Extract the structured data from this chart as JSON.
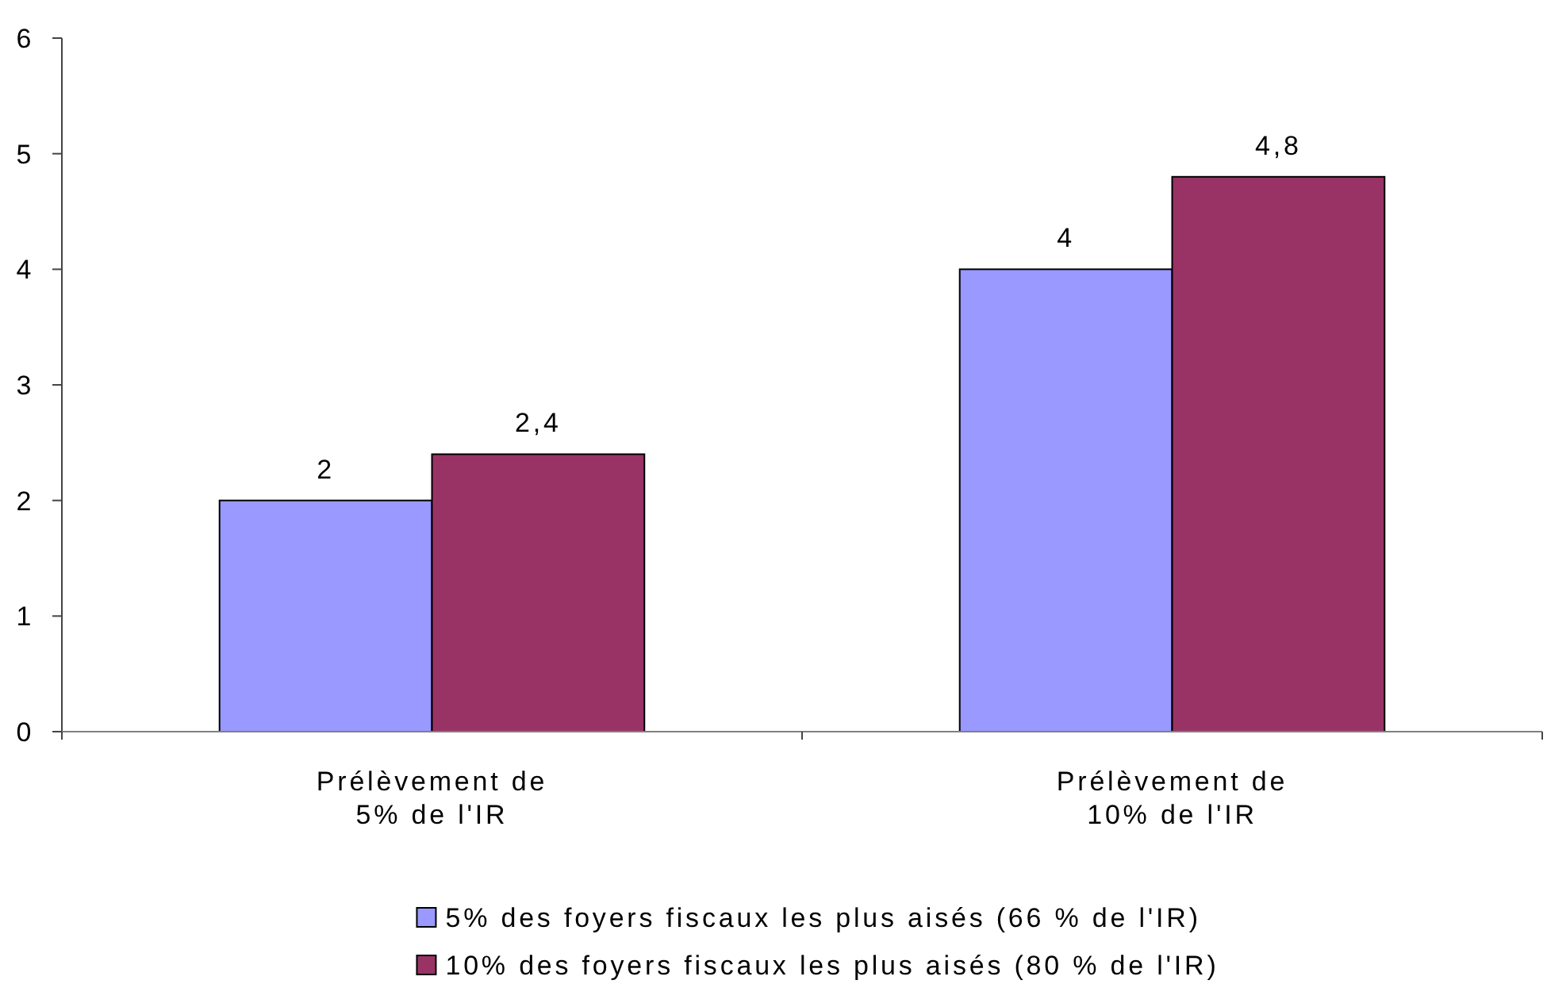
{
  "chart_data": {
    "type": "bar",
    "categories": [
      "Prélèvement de 5% de l'IR",
      "Prélèvement de 10% de l'IR"
    ],
    "series": [
      {
        "name": "5% des foyers fiscaux les plus aisés (66 % de l'IR)",
        "color": "#9999ff",
        "values": [
          2,
          4
        ],
        "value_labels": [
          "2",
          "4"
        ]
      },
      {
        "name": "10% des foyers fiscaux les plus aisés (80 % de l'IR)",
        "color": "#993366",
        "values": [
          2.4,
          4.8
        ],
        "value_labels": [
          "2,4",
          "4,8"
        ]
      }
    ],
    "ylim": [
      0,
      6
    ],
    "yticks": [
      0,
      1,
      2,
      3,
      4,
      5,
      6
    ],
    "legend": "bottom"
  }
}
